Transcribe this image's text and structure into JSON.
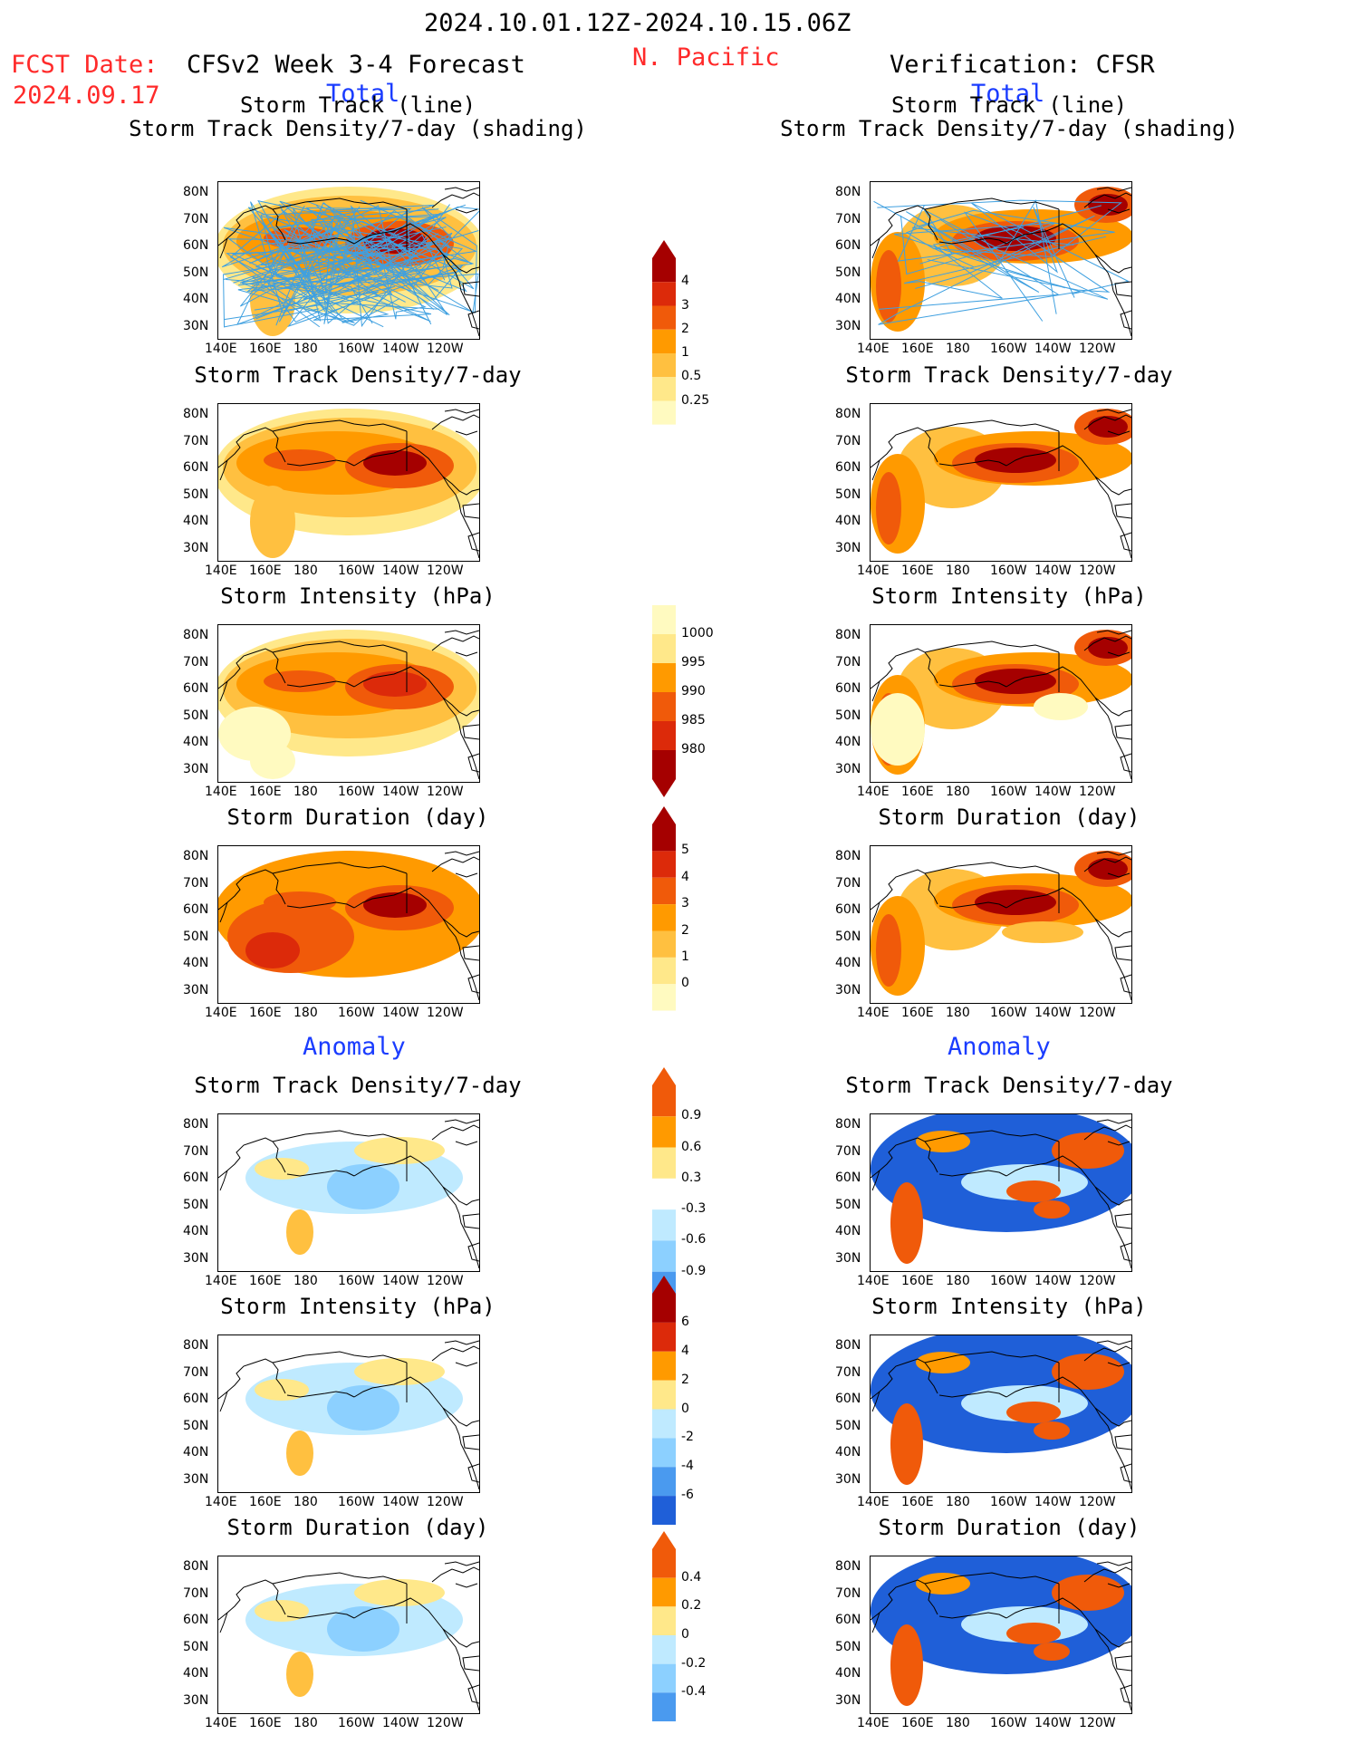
{
  "header": {
    "period": "2024.10.01.12Z-2024.10.15.06Z",
    "fcst_label": "FCST Date:",
    "fcst_date": "2024.09.17",
    "model": "CFSv2 Week 3-4 Forecast",
    "region": "N. Pacific",
    "verification": "Verification: CFSR",
    "total_label": "Total",
    "anomaly_label": "Anomaly"
  },
  "panel_titles": {
    "track_line": "Storm Track (line)",
    "track_density_shading": "Storm Track Density/7-day (shading)",
    "track_density": "Storm Track Density/7-day",
    "intensity": "Storm Intensity (hPa)",
    "duration": "Storm Duration (day)"
  },
  "axes": {
    "lat_ticks": [
      "80N",
      "70N",
      "60N",
      "50N",
      "40N",
      "30N"
    ],
    "lon_ticks": [
      "140E",
      "160E",
      "180",
      "160W",
      "140W",
      "120W"
    ]
  },
  "colorbars": {
    "density_total": [
      "4",
      "3",
      "2",
      "1",
      "0.5",
      "0.25"
    ],
    "intensity_total": [
      "1000",
      "995",
      "990",
      "985",
      "980"
    ],
    "duration_total": [
      "5",
      "4",
      "3",
      "2",
      "1",
      "0"
    ],
    "density_anom": [
      "0.9",
      "0.6",
      "0.3",
      "-0.3",
      "-0.6",
      "-0.9"
    ],
    "intensity_anom": [
      "6",
      "4",
      "2",
      "0",
      "-2",
      "-4",
      "-6"
    ],
    "duration_anom": [
      "0.4",
      "0.2",
      "0",
      "-0.2",
      "-0.4"
    ]
  },
  "colors": {
    "dark_red": "#a50000",
    "red": "#dc2a0a",
    "orange_red": "#f05a0a",
    "orange": "#ff9a00",
    "light_orange": "#ffc040",
    "yellow": "#ffe88a",
    "pale_yellow": "#fffac0",
    "pale_blue": "#bfeaff",
    "light_blue": "#8cd0ff",
    "mid_blue": "#4a9aef",
    "blue": "#1f5fd8",
    "track_line": "#3fa0e0"
  }
}
